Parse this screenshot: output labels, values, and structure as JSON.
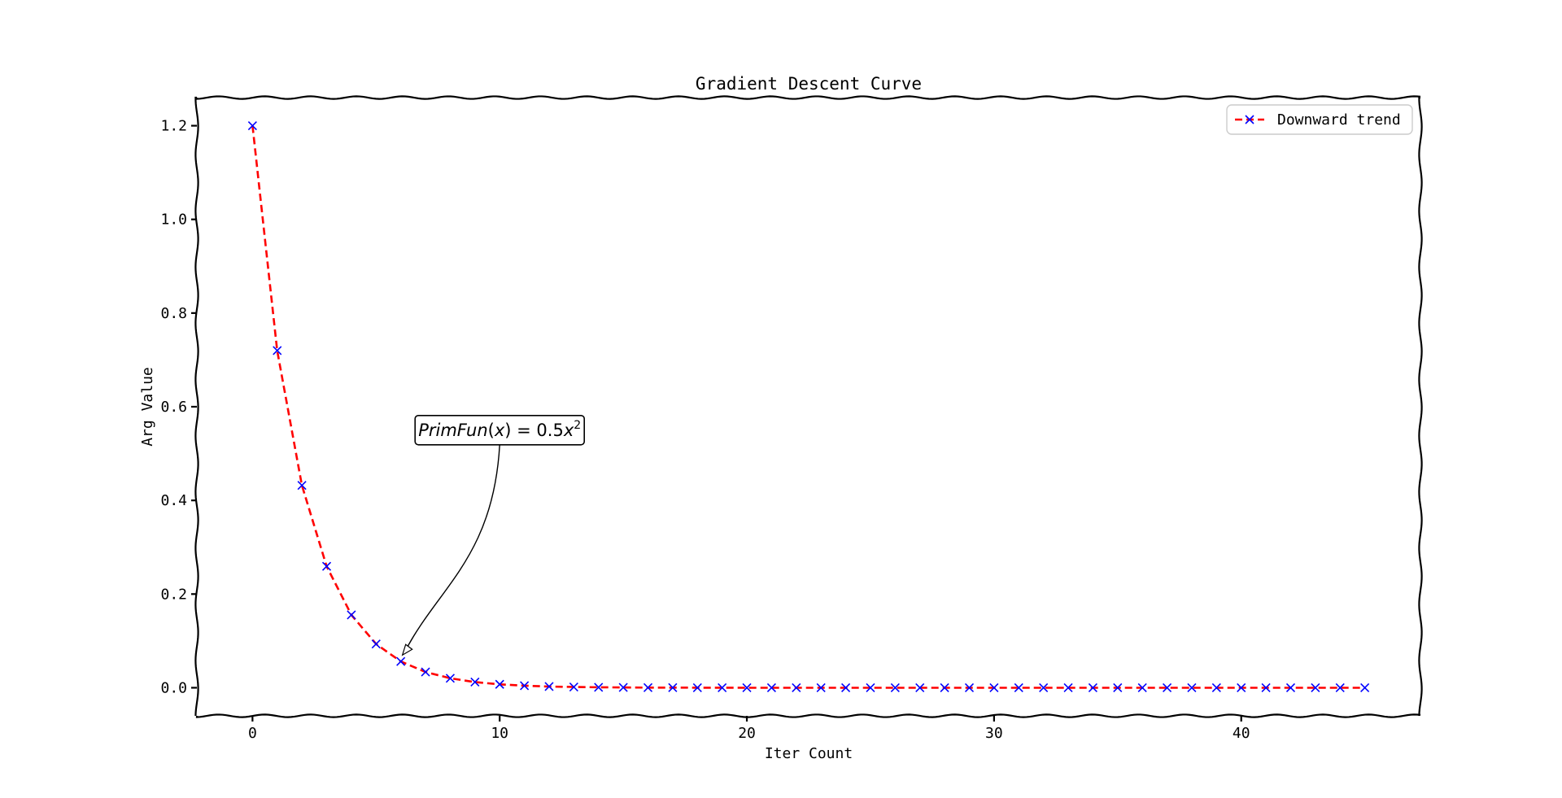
{
  "chart_data": {
    "type": "line",
    "title": "Gradient Descent Curve",
    "xlabel": "Iter Count",
    "ylabel": "Arg Value",
    "xlim": [
      -2.25,
      47.25
    ],
    "ylim": [
      -0.06,
      1.26
    ],
    "xticks": [
      0,
      10,
      20,
      30,
      40
    ],
    "yticks": [
      0.0,
      0.2,
      0.4,
      0.6,
      0.8,
      1.0,
      1.2
    ],
    "ytick_labels": [
      "0.0",
      "0.2",
      "0.4",
      "0.6",
      "0.8",
      "1.0",
      "1.2"
    ],
    "grid": false,
    "legend": {
      "position": "top-right"
    },
    "series": [
      {
        "name": "Downward trend",
        "line_color": "#ff0000",
        "line_style": "dashed",
        "marker": "x",
        "marker_color": "#0000ff",
        "x": [
          0,
          1,
          2,
          3,
          4,
          5,
          6,
          7,
          8,
          9,
          10,
          11,
          12,
          13,
          14,
          15,
          16,
          17,
          18,
          19,
          20,
          21,
          22,
          23,
          24,
          25,
          26,
          27,
          28,
          29,
          30,
          31,
          32,
          33,
          34,
          35,
          36,
          37,
          38,
          39,
          40,
          41,
          42,
          43,
          44,
          45
        ],
        "y": [
          1.2,
          0.72,
          0.432,
          0.2592,
          0.1555,
          0.0933,
          0.056,
          0.0336,
          0.0202,
          0.0121,
          0.0073,
          0.0044,
          0.0026,
          0.0016,
          0.0009,
          0.0006,
          0.0003,
          0.0002,
          0.0001,
          0.0001,
          0,
          0,
          0,
          0,
          0,
          0,
          0,
          0,
          0,
          0,
          0,
          0,
          0,
          0,
          0,
          0,
          0,
          0,
          0,
          0,
          0,
          0,
          0,
          0,
          0,
          0
        ]
      }
    ],
    "annotation": {
      "text_parts": [
        "PrimFun",
        "(",
        "x",
        ") = 0.5",
        "x",
        "2"
      ],
      "xy": [
        6,
        0.056
      ],
      "text_xy": [
        10,
        0.55
      ]
    }
  }
}
